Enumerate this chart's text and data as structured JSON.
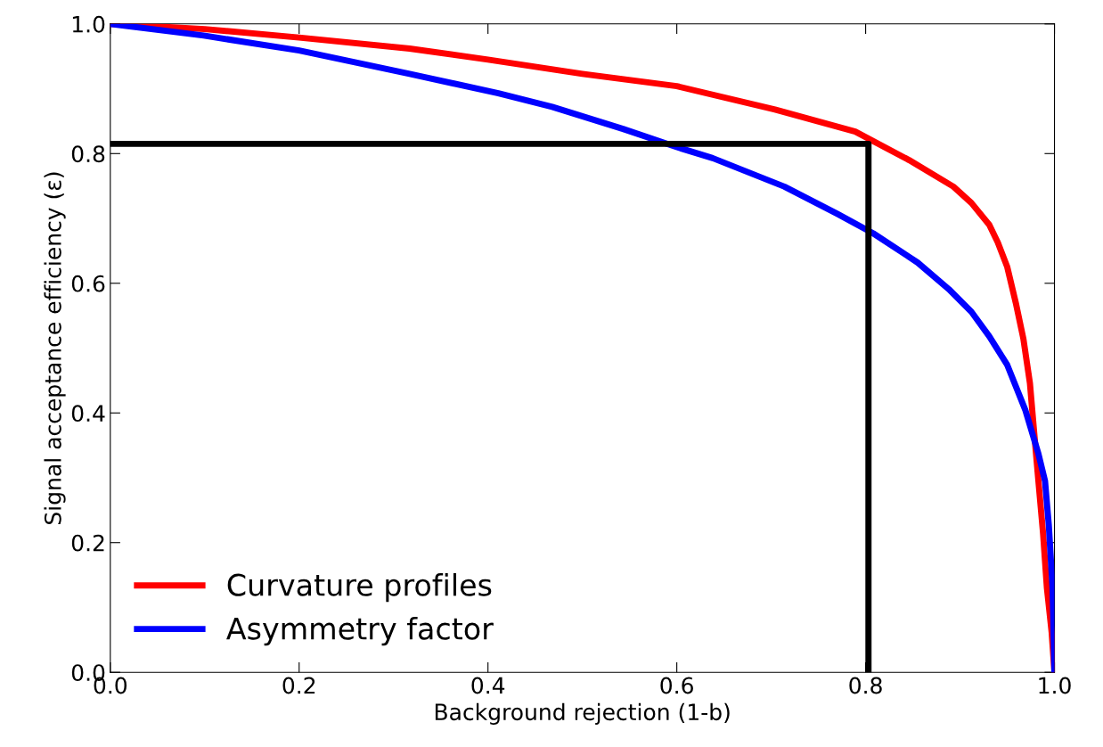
{
  "chart_data": {
    "type": "line",
    "xlabel": "Background rejection (1-b)",
    "ylabel": "Signal acceptance efficiency (ε)",
    "xlim": [
      0,
      1
    ],
    "ylim": [
      0,
      1
    ],
    "xticks": [
      {
        "value": 0,
        "label": "0.0"
      },
      0.2,
      0.4,
      0.6,
      0.8,
      {
        "value": 1,
        "label": "1.0"
      }
    ],
    "yticks": [
      {
        "value": 0,
        "label": "0.0"
      },
      0.2,
      0.4,
      0.6,
      0.8,
      {
        "value": 1,
        "label": "1.0"
      }
    ],
    "grid": false,
    "legend": "bottom left",
    "line_style": "solid",
    "marker": "none",
    "series": [
      {
        "name": "Curvature profiles",
        "color": "#ff0000",
        "x": [
          0,
          0.1,
          0.2,
          0.317,
          0.4,
          0.5,
          0.6,
          0.704,
          0.789,
          0.846,
          0.893,
          0.912,
          0.931,
          0.94,
          0.95,
          0.959,
          0.967,
          0.974,
          0.978,
          0.983,
          0.988,
          0.992,
          0.997,
          1.0
        ],
        "values": [
          1.0,
          0.992,
          0.979,
          0.962,
          0.945,
          0.923,
          0.904,
          0.868,
          0.834,
          0.79,
          0.749,
          0.724,
          0.69,
          0.663,
          0.625,
          0.57,
          0.515,
          0.446,
          0.378,
          0.295,
          0.213,
          0.13,
          0.062,
          0
        ]
      },
      {
        "name": "Asymmetry factor",
        "color": "#0000ff",
        "x": [
          0,
          0.099,
          0.2,
          0.317,
          0.411,
          0.468,
          0.543,
          0.6,
          0.638,
          0.714,
          0.77,
          0.808,
          0.855,
          0.888,
          0.912,
          0.931,
          0.95,
          0.969,
          0.983,
          0.99,
          0.994,
          0.998,
          1.0
        ],
        "values": [
          1.0,
          0.982,
          0.959,
          0.923,
          0.893,
          0.872,
          0.838,
          0.81,
          0.793,
          0.749,
          0.707,
          0.677,
          0.632,
          0.591,
          0.556,
          0.518,
          0.474,
          0.405,
          0.337,
          0.295,
          0.227,
          0.13,
          0
        ]
      },
      {
        "color": "#000000",
        "x": [
          0,
          0.803,
          0.803
        ],
        "values": [
          0.815,
          0.815,
          0
        ]
      }
    ]
  }
}
